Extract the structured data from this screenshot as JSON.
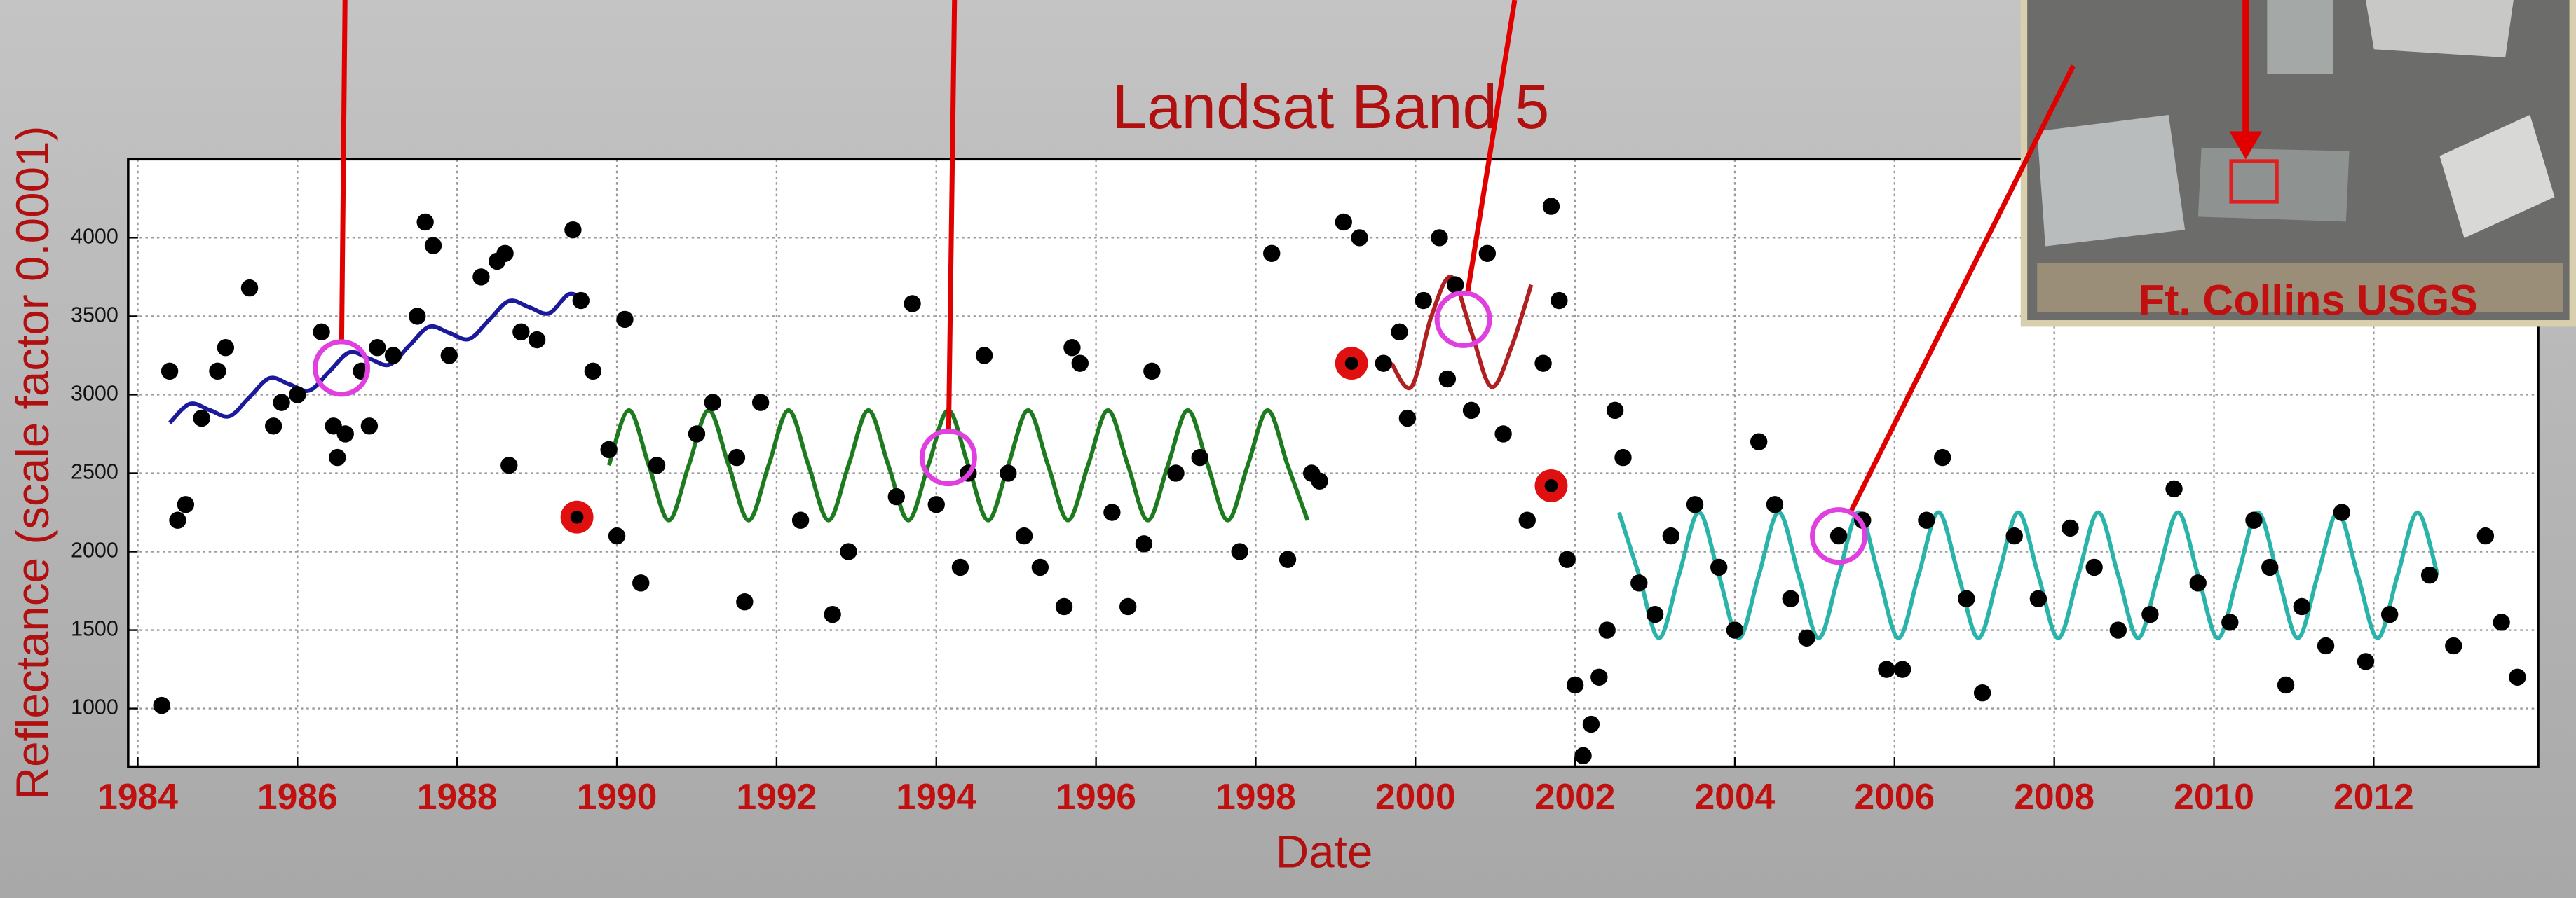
{
  "chart_data": {
    "type": "scatter",
    "title": "Landsat Band 5",
    "x_label": "Date",
    "y_label": "Reflectance (scale factor 0.0001)",
    "image_caption": "Ft. Collins USGS",
    "xlim": [
      1983.88,
      2014.06
    ],
    "ylim": [
      630,
      4500
    ],
    "xticks": [
      1984,
      1986,
      1988,
      1990,
      1992,
      1994,
      1996,
      1998,
      2000,
      2002,
      2004,
      2006,
      2008,
      2010,
      2012
    ],
    "yticks": [
      1000,
      1500,
      2000,
      2500,
      3000,
      3500,
      4000
    ],
    "grid": true,
    "points": {
      "color": "#000000",
      "x": [
        1984.3,
        1984.4,
        1984.5,
        1984.6,
        1984.8,
        1985.0,
        1985.1,
        1985.4,
        1985.7,
        1985.8,
        1986.0,
        1986.3,
        1986.45,
        1986.5,
        1986.6,
        1986.8,
        1986.9,
        1987.0,
        1987.2,
        1987.5,
        1987.6,
        1987.7,
        1987.9,
        1988.3,
        1988.5,
        1988.6,
        1988.65,
        1988.8,
        1989.0,
        1989.45,
        1989.55,
        1989.7,
        1989.9,
        1990.0,
        1990.1,
        1990.3,
        1990.5,
        1991.0,
        1991.2,
        1991.5,
        1991.6,
        1991.8,
        1992.3,
        1992.7,
        1992.9,
        1993.5,
        1993.7,
        1994.0,
        1994.3,
        1994.4,
        1994.6,
        1994.9,
        1995.1,
        1995.3,
        1995.6,
        1995.7,
        1995.8,
        1996.2,
        1996.4,
        1996.6,
        1996.7,
        1997.0,
        1997.3,
        1997.8,
        1998.2,
        1998.4,
        1998.7,
        1998.8,
        1999.1,
        1999.3,
        1999.6,
        1999.8,
        1999.9,
        2000.1,
        2000.3,
        2000.4,
        2000.5,
        2000.7,
        2000.9,
        2001.1,
        2001.4,
        2001.6,
        2001.7,
        2001.8,
        2001.9,
        2002.0,
        2002.1,
        2002.2,
        2002.3,
        2002.4,
        2002.5,
        2002.6,
        2002.8,
        2003.0,
        2003.2,
        2003.5,
        2003.8,
        2004.0,
        2004.3,
        2004.5,
        2004.7,
        2004.9,
        2005.3,
        2005.6,
        2005.9,
        2006.1,
        2006.4,
        2006.6,
        2006.9,
        2007.1,
        2007.5,
        2007.8,
        2008.2,
        2008.5,
        2008.8,
        2009.2,
        2009.5,
        2009.8,
        2010.2,
        2010.5,
        2010.7,
        2010.9,
        2011.1,
        2011.4,
        2011.6,
        2011.9,
        2012.2,
        2012.7,
        2013.0,
        2013.4,
        2013.6,
        2013.8
      ],
      "values": [
        1020,
        3150,
        2200,
        2300,
        2850,
        3150,
        3300,
        3680,
        2800,
        2950,
        3000,
        3400,
        2800,
        2600,
        2750,
        3150,
        2800,
        3300,
        3250,
        3500,
        4100,
        3950,
        3250,
        3750,
        3850,
        3900,
        2550,
        3400,
        3350,
        4050,
        3600,
        3150,
        2650,
        2100,
        3480,
        1800,
        2550,
        2750,
        2950,
        2600,
        1680,
        2950,
        2200,
        1600,
        2000,
        2350,
        3580,
        2300,
        1900,
        2500,
        3250,
        2500,
        2100,
        1900,
        1650,
        3300,
        3200,
        2250,
        1650,
        2050,
        3150,
        2500,
        2600,
        2000,
        3900,
        1950,
        2500,
        2450,
        4100,
        4000,
        3200,
        3400,
        2850,
        3600,
        4000,
        3100,
        3700,
        2900,
        3900,
        2750,
        2200,
        3200,
        4200,
        3600,
        1950,
        1150,
        700,
        900,
        1200,
        1500,
        2900,
        2600,
        1800,
        1600,
        2100,
        2300,
        1900,
        1500,
        2700,
        2300,
        1700,
        1450,
        2100,
        2200,
        1250,
        1250,
        2200,
        2600,
        1700,
        1100,
        2100,
        1700,
        2150,
        1900,
        1500,
        1600,
        2400,
        1800,
        1550,
        2200,
        1900,
        1150,
        1650,
        1400,
        2250,
        1300,
        1600,
        1850,
        1400,
        2100,
        1550,
        1200
      ]
    },
    "fits": [
      {
        "color": "#1a1a9a",
        "x": [
          1984.4,
          1984.65,
          1984.9,
          1985.15,
          1985.4,
          1985.65,
          1985.9,
          1986.15,
          1986.4,
          1986.65,
          1986.9,
          1987.15,
          1987.4,
          1987.65,
          1987.9,
          1988.15,
          1988.4,
          1988.65,
          1988.9,
          1989.15,
          1989.4,
          1989.6
        ],
        "values": [
          2820,
          2941,
          2902,
          2863,
          2984,
          3105,
          3066,
          3027,
          3148,
          3269,
          3230,
          3191,
          3312,
          3433,
          3394,
          3355,
          3476,
          3597,
          3558,
          3519,
          3640,
          3600
        ]
      },
      {
        "color": "#1e7a1e",
        "x": [
          1989.9,
          1990.15,
          1990.4,
          1990.65,
          1990.9,
          1991.15,
          1991.4,
          1991.65,
          1991.9,
          1992.15,
          1992.4,
          1992.65,
          1992.9,
          1993.15,
          1993.4,
          1993.65,
          1993.9,
          1994.15,
          1994.4,
          1994.65,
          1994.9,
          1995.15,
          1995.4,
          1995.65,
          1995.9,
          1996.15,
          1996.4,
          1996.65,
          1996.9,
          1997.15,
          1997.4,
          1997.65,
          1997.9,
          1998.15,
          1998.4,
          1998.65
        ],
        "values": [
          2550,
          2900,
          2550,
          2200,
          2550,
          2900,
          2550,
          2200,
          2550,
          2900,
          2550,
          2200,
          2550,
          2900,
          2550,
          2200,
          2550,
          2900,
          2550,
          2200,
          2550,
          2900,
          2550,
          2200,
          2550,
          2900,
          2550,
          2200,
          2550,
          2900,
          2550,
          2200,
          2550,
          2900,
          2550,
          2200
        ]
      },
      {
        "color": "#b02020",
        "x": [
          1999.7,
          1999.95,
          2000.2,
          2000.45,
          2000.7,
          2000.95,
          2001.2,
          2001.45
        ],
        "values": [
          3200,
          3050,
          3500,
          3750,
          3400,
          3050,
          3300,
          3700
        ]
      },
      {
        "color": "#2ab3a8",
        "x": [
          2002.55,
          2002.8,
          2003.05,
          2003.3,
          2003.55,
          2003.8,
          2004.05,
          2004.3,
          2004.55,
          2004.8,
          2005.05,
          2005.3,
          2005.55,
          2005.8,
          2006.05,
          2006.3,
          2006.55,
          2006.8,
          2007.05,
          2007.3,
          2007.55,
          2007.8,
          2008.05,
          2008.3,
          2008.55,
          2008.8,
          2009.05,
          2009.3,
          2009.55,
          2009.8,
          2010.05,
          2010.3,
          2010.55,
          2010.8,
          2011.05,
          2011.3,
          2011.55,
          2011.8,
          2012.05,
          2012.3,
          2012.55,
          2012.8
        ],
        "values": [
          2250,
          1850,
          1450,
          1850,
          2250,
          1850,
          1450,
          1850,
          2250,
          1850,
          1450,
          1850,
          2250,
          1850,
          1450,
          1850,
          2250,
          1850,
          1450,
          1850,
          2250,
          1850,
          1450,
          1850,
          2250,
          1850,
          1450,
          1850,
          2250,
          1850,
          1450,
          1850,
          2250,
          1850,
          1450,
          1850,
          2250,
          1850,
          1450,
          1850,
          2250,
          1850
        ]
      }
    ],
    "highlights": {
      "color": "#e01010",
      "x": [
        1989.5,
        1999.2,
        2001.7
      ],
      "values": [
        2220,
        3200,
        2420
      ]
    },
    "circles": {
      "color": "#e040e0",
      "x": [
        1986.55,
        1994.15,
        2000.6,
        2005.3
      ],
      "values": [
        3170,
        2600,
        3480,
        2100
      ]
    }
  }
}
